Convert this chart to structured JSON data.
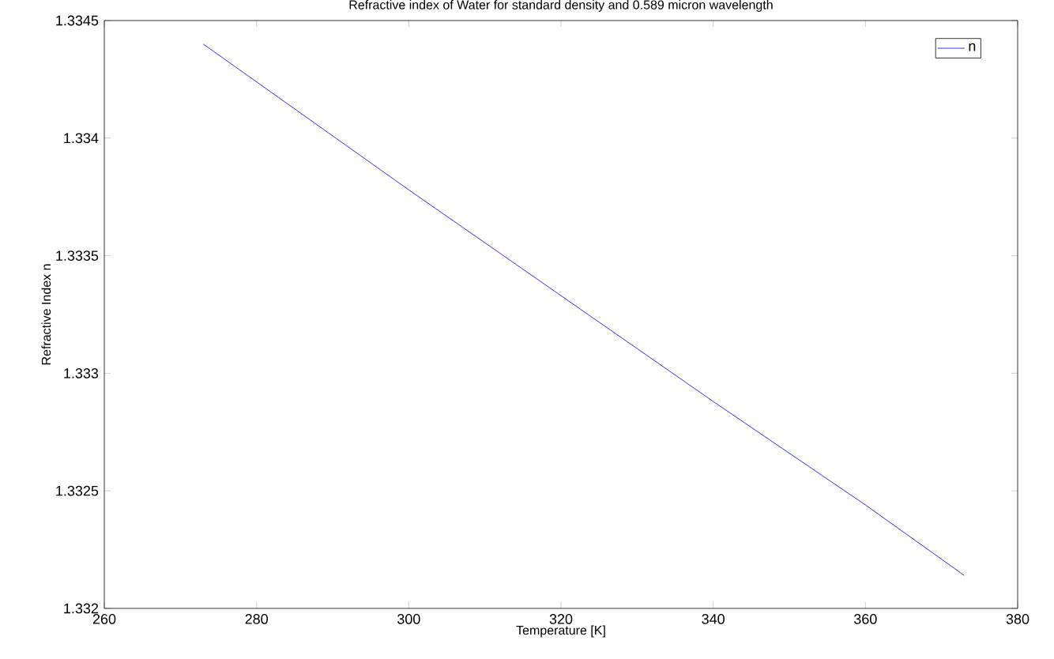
{
  "chart_data": {
    "type": "line",
    "title": "Refractive index of Water for standard density and 0.589 micron wavelength",
    "xlabel": "Temperature [K]",
    "ylabel": "Refractive Index n",
    "x": [
      273,
      300,
      340,
      360,
      373
    ],
    "series": [
      {
        "name": "n",
        "color": "#3333ee",
        "values": [
          1.3344,
          1.33378,
          1.33288,
          1.33244,
          1.33214
        ]
      }
    ],
    "xlim": [
      260,
      380
    ],
    "ylim": [
      1.332,
      1.3345
    ],
    "xticks": [
      260,
      280,
      300,
      320,
      340,
      360,
      380
    ],
    "yticks": [
      1.332,
      1.3325,
      1.333,
      1.3335,
      1.334,
      1.3345
    ],
    "legend": "top right",
    "grid": false,
    "marker": "none",
    "line_style": "solid"
  }
}
